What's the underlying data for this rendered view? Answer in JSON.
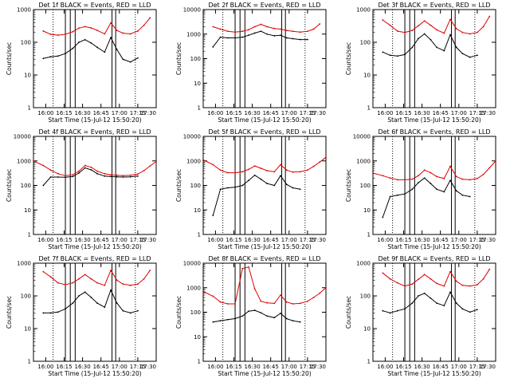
{
  "figure": {
    "colors": {
      "events": "#000000",
      "lld": "#dd0000",
      "axes": "#000000",
      "background": "#ffffff"
    }
  },
  "chart_data": [
    {
      "type": "line",
      "title": "Det 1f BLACK = Events, RED = LLD",
      "xlabel": "Start Time (15-Jul-12 15:50:20)",
      "ylabel": "Counts/sec",
      "xlim": [
        "15:50",
        "17:30"
      ],
      "xticks": [
        "16:00",
        "16:15",
        "16:30",
        "16:45",
        "17:00",
        "17:15",
        "17:30"
      ],
      "ylim": [
        1,
        1000
      ],
      "yscale": "log",
      "yticks": [
        "1",
        "10",
        "100",
        "1000"
      ],
      "x": [
        "15:58",
        "16:04",
        "16:10",
        "16:16",
        "16:22",
        "16:27",
        "16:32",
        "16:37",
        "16:42",
        "16:48",
        "16:53",
        "16:58",
        "17:03",
        "17:09",
        "17:15",
        "17:20",
        "17:25"
      ],
      "series": [
        {
          "name": "LLD",
          "color": "red",
          "values": [
            220,
            175,
            165,
            175,
            210,
            270,
            300,
            275,
            230,
            180,
            390,
            230,
            190,
            180,
            220,
            330,
            560
          ]
        },
        {
          "name": "Events",
          "color": "black",
          "values": [
            32,
            36,
            38,
            45,
            65,
            100,
            120,
            95,
            70,
            50,
            140,
            60,
            30,
            25,
            33,
            null,
            null
          ]
        }
      ],
      "vlines_dotted": [
        "16:06",
        "17:13"
      ],
      "vlines_solid": [
        "16:16",
        "16:20",
        "16:24",
        "16:54",
        "16:57"
      ]
    },
    {
      "type": "line",
      "title": "Det 2f BLACK = Events, RED = LLD",
      "xlabel": "Start Time (15-Jul-12 15:50:20)",
      "ylabel": "Counts/sec",
      "xlim": [
        "15:50",
        "17:30"
      ],
      "xticks": [
        "16:00",
        "16:15",
        "16:30",
        "16:45",
        "17:00",
        "17:15",
        "17:30"
      ],
      "ylim": [
        1,
        10000
      ],
      "yscale": "log",
      "yticks": [
        "1",
        "10",
        "100",
        "1000",
        "10000"
      ],
      "x": [
        "15:58",
        "16:04",
        "16:10",
        "16:16",
        "16:22",
        "16:27",
        "16:32",
        "16:37",
        "16:42",
        "16:48",
        "16:53",
        "16:58",
        "17:03",
        "17:09",
        "17:15",
        "17:20",
        "17:25"
      ],
      "series": [
        {
          "name": "LLD",
          "color": "red",
          "values": [
            2000,
            1600,
            1300,
            1200,
            1300,
            1500,
            2000,
            2500,
            2000,
            1700,
            1600,
            1400,
            1300,
            1200,
            1300,
            1600,
            2600
          ]
        },
        {
          "name": "Events",
          "color": "black",
          "values": [
            300,
            750,
            700,
            700,
            750,
            900,
            1100,
            1300,
            1000,
            850,
            900,
            700,
            650,
            600,
            600,
            null,
            null
          ]
        }
      ],
      "vlines_dotted": [
        "16:06",
        "17:13"
      ],
      "vlines_solid": [
        "16:16",
        "16:20",
        "16:24",
        "16:54",
        "16:57"
      ]
    },
    {
      "type": "line",
      "title": "Det 3f BLACK = Events, RED = LLD",
      "xlabel": "Start Time (15-Jul-12 15:50:20)",
      "ylabel": "Counts/sec",
      "xlim": [
        "15:50",
        "17:30"
      ],
      "xticks": [
        "16:00",
        "16:15",
        "16:30",
        "16:45",
        "17:00",
        "17:15",
        "17:30"
      ],
      "ylim": [
        1,
        1000
      ],
      "yscale": "log",
      "yticks": [
        "1",
        "10",
        "100",
        "1000"
      ],
      "x": [
        "15:58",
        "16:04",
        "16:10",
        "16:16",
        "16:22",
        "16:27",
        "16:32",
        "16:37",
        "16:42",
        "16:48",
        "16:53",
        "16:58",
        "17:03",
        "17:09",
        "17:15",
        "17:20",
        "17:25"
      ],
      "series": [
        {
          "name": "LLD",
          "color": "red",
          "values": [
            480,
            330,
            220,
            200,
            230,
            320,
            450,
            330,
            240,
            190,
            500,
            260,
            200,
            180,
            200,
            300,
            620
          ]
        },
        {
          "name": "Events",
          "color": "black",
          "values": [
            50,
            40,
            38,
            42,
            70,
            130,
            180,
            120,
            70,
            55,
            170,
            70,
            45,
            35,
            40,
            null,
            null
          ]
        }
      ],
      "vlines_dotted": [
        "16:06",
        "17:13"
      ],
      "vlines_solid": [
        "16:16",
        "16:20",
        "16:24",
        "16:54",
        "16:57"
      ]
    },
    {
      "type": "line",
      "title": "Det 4f BLACK = Events, RED = LLD",
      "xlabel": "Start Time (15-Jul-12 15:50:20)",
      "ylabel": "Counts/sec",
      "xlim": [
        "15:50",
        "17:30"
      ],
      "xticks": [
        "16:00",
        "16:15",
        "16:30",
        "16:45",
        "17:00",
        "17:15",
        "17:30"
      ],
      "ylim": [
        1,
        10000
      ],
      "yscale": "log",
      "yticks": [
        "1",
        "10",
        "100",
        "1000",
        "10000"
      ],
      "x": [
        "15:50",
        "15:58",
        "16:04",
        "16:10",
        "16:16",
        "16:22",
        "16:27",
        "16:32",
        "16:37",
        "16:42",
        "16:48",
        "16:53",
        "16:58",
        "17:03",
        "17:09",
        "17:15",
        "17:20",
        "17:25",
        "17:30"
      ],
      "series": [
        {
          "name": "LLD",
          "color": "red",
          "values": [
            1000,
            650,
            420,
            300,
            250,
            270,
            380,
            650,
            550,
            380,
            300,
            270,
            260,
            250,
            260,
            290,
            400,
            620,
            950
          ]
        },
        {
          "name": "Events",
          "color": "black",
          "values": [
            null,
            100,
            220,
            220,
            215,
            230,
            320,
            520,
            430,
            300,
            240,
            230,
            225,
            220,
            225,
            240,
            null,
            null,
            null
          ]
        }
      ],
      "vlines_dotted": [
        "16:06",
        "17:13"
      ],
      "vlines_solid": [
        "16:16",
        "16:20",
        "16:24",
        "16:54",
        "16:57"
      ]
    },
    {
      "type": "line",
      "title": "Det 5f BLACK = Events, RED = LLD",
      "xlabel": "Start Time (15-Jul-12 15:50:20)",
      "ylabel": "Counts/sec",
      "xlim": [
        "15:50",
        "17:30"
      ],
      "xticks": [
        "16:00",
        "16:15",
        "16:30",
        "16:45",
        "17:00",
        "17:15",
        "17:30"
      ],
      "ylim": [
        1,
        10000
      ],
      "yscale": "log",
      "yticks": [
        "1",
        "10",
        "100",
        "1000",
        "10000"
      ],
      "x": [
        "15:50",
        "15:58",
        "16:04",
        "16:10",
        "16:16",
        "16:22",
        "16:27",
        "16:32",
        "16:37",
        "16:42",
        "16:48",
        "16:53",
        "16:58",
        "17:03",
        "17:09",
        "17:15",
        "17:20",
        "17:25",
        "17:30"
      ],
      "series": [
        {
          "name": "LLD",
          "color": "red",
          "values": [
            1100,
            700,
            420,
            330,
            330,
            360,
            450,
            620,
            500,
            400,
            360,
            700,
            420,
            350,
            360,
            420,
            600,
            900,
            1400
          ]
        },
        {
          "name": "Events",
          "color": "black",
          "values": [
            null,
            6,
            70,
            80,
            85,
            100,
            160,
            260,
            180,
            120,
            100,
            250,
            110,
            80,
            70,
            null,
            null,
            null,
            null
          ]
        }
      ],
      "vlines_dotted": [
        "16:06",
        "17:13"
      ],
      "vlines_solid": [
        "16:16",
        "16:20",
        "16:24",
        "16:54",
        "16:57"
      ]
    },
    {
      "type": "line",
      "title": "Det 6f BLACK = Events, RED = LLD",
      "xlabel": "Start Time (15-Jul-12 15:50:20)",
      "ylabel": "Counts/sec",
      "xlim": [
        "15:50",
        "17:30"
      ],
      "xticks": [
        "16:00",
        "16:15",
        "16:30",
        "16:45",
        "17:00",
        "17:15",
        "17:30"
      ],
      "ylim": [
        1,
        10000
      ],
      "yscale": "log",
      "yticks": [
        "1",
        "10",
        "100",
        "1000",
        "10000"
      ],
      "x": [
        "15:50",
        "15:58",
        "16:04",
        "16:10",
        "16:16",
        "16:22",
        "16:27",
        "16:32",
        "16:37",
        "16:42",
        "16:48",
        "16:53",
        "16:58",
        "17:03",
        "17:09",
        "17:15",
        "17:20",
        "17:25",
        "17:30"
      ],
      "series": [
        {
          "name": "LLD",
          "color": "red",
          "values": [
            320,
            250,
            200,
            170,
            170,
            180,
            250,
            420,
            330,
            230,
            190,
            600,
            230,
            180,
            170,
            190,
            280,
            520,
            1000
          ]
        },
        {
          "name": "Events",
          "color": "black",
          "values": [
            null,
            5,
            35,
            40,
            45,
            70,
            130,
            200,
            120,
            70,
            55,
            160,
            60,
            40,
            35,
            null,
            null,
            null,
            null
          ]
        }
      ],
      "vlines_dotted": [
        "16:06",
        "17:13"
      ],
      "vlines_solid": [
        "16:16",
        "16:20",
        "16:24",
        "16:54",
        "16:57"
      ]
    },
    {
      "type": "line",
      "title": "Det 7f BLACK = Events, RED = LLD",
      "xlabel": "Start Time (15-Jul-12 15:50:20)",
      "ylabel": "Counts/sec",
      "xlim": [
        "15:50",
        "17:30"
      ],
      "xticks": [
        "16:00",
        "16:15",
        "16:30",
        "16:45",
        "17:00",
        "17:15",
        "17:30"
      ],
      "ylim": [
        1,
        1000
      ],
      "yscale": "log",
      "yticks": [
        "1",
        "10",
        "100",
        "1000"
      ],
      "x": [
        "15:58",
        "16:04",
        "16:10",
        "16:16",
        "16:22",
        "16:27",
        "16:32",
        "16:37",
        "16:42",
        "16:48",
        "16:53",
        "16:58",
        "17:03",
        "17:09",
        "17:15",
        "17:20",
        "17:25"
      ],
      "series": [
        {
          "name": "LLD",
          "color": "red",
          "values": [
            550,
            380,
            250,
            220,
            250,
            330,
            450,
            330,
            250,
            210,
            600,
            300,
            230,
            210,
            230,
            330,
            600
          ]
        },
        {
          "name": "Events",
          "color": "black",
          "values": [
            30,
            30,
            32,
            40,
            60,
            100,
            130,
            90,
            60,
            45,
            150,
            60,
            35,
            30,
            35,
            null,
            null
          ]
        }
      ],
      "vlines_dotted": [
        "16:06",
        "17:13"
      ],
      "vlines_solid": [
        "16:16",
        "16:20",
        "16:24",
        "16:54",
        "16:57"
      ]
    },
    {
      "type": "line",
      "title": "Det 8f BLACK = Events, RED = LLD",
      "xlabel": "Start Time (15-Jul-12 15:50:20)",
      "ylabel": "Counts/sec",
      "xlim": [
        "15:50",
        "17:30"
      ],
      "xticks": [
        "16:00",
        "16:15",
        "16:30",
        "16:45",
        "17:00",
        "17:15",
        "17:30"
      ],
      "ylim": [
        1,
        10000
      ],
      "yscale": "log",
      "yticks": [
        "1",
        "10",
        "100",
        "1000",
        "10000"
      ],
      "x": [
        "15:50",
        "15:58",
        "16:04",
        "16:10",
        "16:16",
        "16:22",
        "16:27",
        "16:32",
        "16:37",
        "16:42",
        "16:48",
        "16:53",
        "16:58",
        "17:03",
        "17:09",
        "17:15",
        "17:20",
        "17:25",
        "17:30"
      ],
      "series": [
        {
          "name": "LLD",
          "color": "red",
          "values": [
            700,
            450,
            260,
            220,
            220,
            6000,
            7000,
            900,
            280,
            240,
            230,
            500,
            260,
            220,
            230,
            280,
            400,
            600,
            1000
          ]
        },
        {
          "name": "Events",
          "color": "black",
          "values": [
            null,
            40,
            45,
            50,
            55,
            70,
            110,
            120,
            95,
            70,
            60,
            90,
            55,
            45,
            40,
            null,
            null,
            null,
            null
          ]
        }
      ],
      "vlines_dotted": [
        "16:06",
        "17:13"
      ],
      "vlines_solid": [
        "16:16",
        "16:20",
        "16:24",
        "16:54",
        "16:57"
      ]
    },
    {
      "type": "line",
      "title": "Det 9f BLACK = Events, RED = LLD",
      "xlabel": "Start Time (15-Jul-12 15:50:20)",
      "ylabel": "Counts/sec",
      "xlim": [
        "15:50",
        "17:30"
      ],
      "xticks": [
        "16:00",
        "16:15",
        "16:30",
        "16:45",
        "17:00",
        "17:15",
        "17:30"
      ],
      "ylim": [
        1,
        1000
      ],
      "yscale": "log",
      "yticks": [
        "1",
        "10",
        "100",
        "1000"
      ],
      "x": [
        "15:58",
        "16:04",
        "16:10",
        "16:16",
        "16:22",
        "16:27",
        "16:32",
        "16:37",
        "16:42",
        "16:48",
        "16:53",
        "16:58",
        "17:03",
        "17:09",
        "17:15",
        "17:20",
        "17:25"
      ],
      "series": [
        {
          "name": "LLD",
          "color": "red",
          "values": [
            500,
            330,
            250,
            200,
            230,
            320,
            450,
            330,
            240,
            200,
            550,
            280,
            210,
            200,
            220,
            330,
            650
          ]
        },
        {
          "name": "Events",
          "color": "black",
          "values": [
            35,
            30,
            35,
            40,
            60,
            100,
            120,
            85,
            60,
            50,
            130,
            60,
            40,
            32,
            38,
            null,
            null
          ]
        }
      ],
      "vlines_dotted": [
        "16:06",
        "17:13"
      ],
      "vlines_solid": [
        "16:16",
        "16:20",
        "16:24",
        "16:54",
        "16:57"
      ]
    }
  ]
}
